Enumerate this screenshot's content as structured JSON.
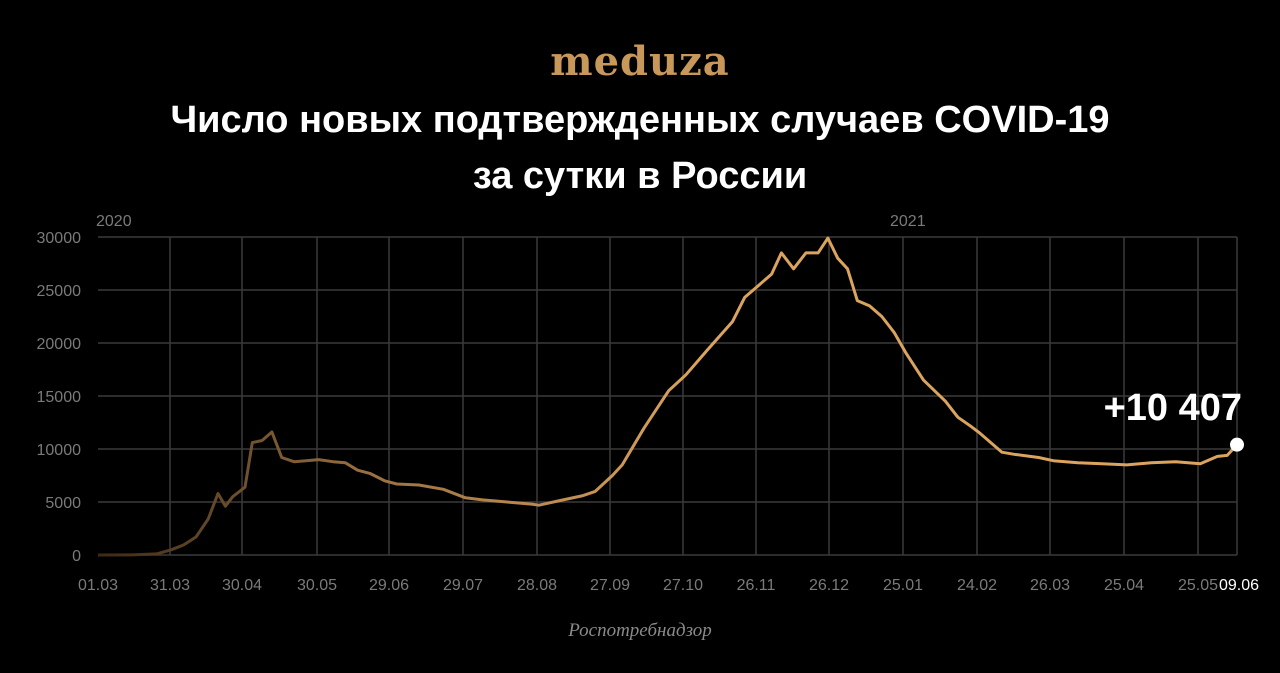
{
  "logo": "meduza",
  "title_line1": "Число новых подтвержденных случаев COVID-19",
  "title_line2": "за сутки в России",
  "source": "Роспотребнадзор",
  "colors": {
    "line_start": "#3d2a16",
    "line_end": "#dba35e",
    "grid": "#3a3a3a",
    "text_muted": "#7a7a7a",
    "logo": "#c8985a"
  },
  "chart_data": {
    "type": "line",
    "title": "Число новых подтвержденных случаев COVID-19 за сутки в России",
    "ylim": [
      0,
      30000
    ],
    "yticks": [
      "0",
      "5000",
      "10000",
      "15000",
      "20000",
      "25000",
      "30000"
    ],
    "xticks": [
      "01.03",
      "31.03",
      "30.04",
      "30.05",
      "29.06",
      "29.07",
      "28.08",
      "27.09",
      "27.10",
      "26.11",
      "26.12",
      "25.01",
      "24.02",
      "26.03",
      "25.04",
      "25.05",
      "09.06"
    ],
    "year_labels": [
      "2020",
      "2021"
    ],
    "grid": true,
    "last_value_label": "+10 407",
    "series": [
      {
        "points": [
          [
            "2020-03-01",
            0
          ],
          [
            "2020-03-15",
            10
          ],
          [
            "2020-03-25",
            100
          ],
          [
            "2020-03-31",
            500
          ],
          [
            "2020-04-05",
            950
          ],
          [
            "2020-04-10",
            1700
          ],
          [
            "2020-04-15",
            3400
          ],
          [
            "2020-04-19",
            5800
          ],
          [
            "2020-04-22",
            4600
          ],
          [
            "2020-04-25",
            5500
          ],
          [
            "2020-04-30",
            6400
          ],
          [
            "2020-05-03",
            10600
          ],
          [
            "2020-05-07",
            10800
          ],
          [
            "2020-05-11",
            11600
          ],
          [
            "2020-05-15",
            9200
          ],
          [
            "2020-05-20",
            8800
          ],
          [
            "2020-05-25",
            8900
          ],
          [
            "2020-05-30",
            9000
          ],
          [
            "2020-06-05",
            8800
          ],
          [
            "2020-06-10",
            8700
          ],
          [
            "2020-06-15",
            8000
          ],
          [
            "2020-06-20",
            7700
          ],
          [
            "2020-06-26",
            7000
          ],
          [
            "2020-07-01",
            6700
          ],
          [
            "2020-07-10",
            6600
          ],
          [
            "2020-07-20",
            6200
          ],
          [
            "2020-07-29",
            5400
          ],
          [
            "2020-08-05",
            5200
          ],
          [
            "2020-08-15",
            5000
          ],
          [
            "2020-08-25",
            4800
          ],
          [
            "2020-08-28",
            4700
          ],
          [
            "2020-09-05",
            5100
          ],
          [
            "2020-09-15",
            5600
          ],
          [
            "2020-09-20",
            6000
          ],
          [
            "2020-09-27",
            7500
          ],
          [
            "2020-10-01",
            8500
          ],
          [
            "2020-10-10",
            12000
          ],
          [
            "2020-10-20",
            15500
          ],
          [
            "2020-10-27",
            17000
          ],
          [
            "2020-11-05",
            19400
          ],
          [
            "2020-11-15",
            22000
          ],
          [
            "2020-11-20",
            24300
          ],
          [
            "2020-11-26",
            25500
          ],
          [
            "2020-12-01",
            26500
          ],
          [
            "2020-12-05",
            28500
          ],
          [
            "2020-12-10",
            27000
          ],
          [
            "2020-12-15",
            28500
          ],
          [
            "2020-12-20",
            28500
          ],
          [
            "2020-12-24",
            29900
          ],
          [
            "2020-12-28",
            28000
          ],
          [
            "2021-01-01",
            27000
          ],
          [
            "2021-01-05",
            24000
          ],
          [
            "2021-01-10",
            23500
          ],
          [
            "2021-01-15",
            22500
          ],
          [
            "2021-01-20",
            21000
          ],
          [
            "2021-01-25",
            19000
          ],
          [
            "2021-02-01",
            16500
          ],
          [
            "2021-02-10",
            14500
          ],
          [
            "2021-02-15",
            13000
          ],
          [
            "2021-02-20",
            12200
          ],
          [
            "2021-02-24",
            11500
          ],
          [
            "2021-03-01",
            10500
          ],
          [
            "2021-03-05",
            9700
          ],
          [
            "2021-03-10",
            9500
          ],
          [
            "2021-03-20",
            9200
          ],
          [
            "2021-03-26",
            8900
          ],
          [
            "2021-04-05",
            8700
          ],
          [
            "2021-04-15",
            8600
          ],
          [
            "2021-04-25",
            8500
          ],
          [
            "2021-05-05",
            8700
          ],
          [
            "2021-05-15",
            8800
          ],
          [
            "2021-05-25",
            8600
          ],
          [
            "2021-06-01",
            9300
          ],
          [
            "2021-06-05",
            9400
          ],
          [
            "2021-06-09",
            10407
          ]
        ]
      }
    ]
  }
}
